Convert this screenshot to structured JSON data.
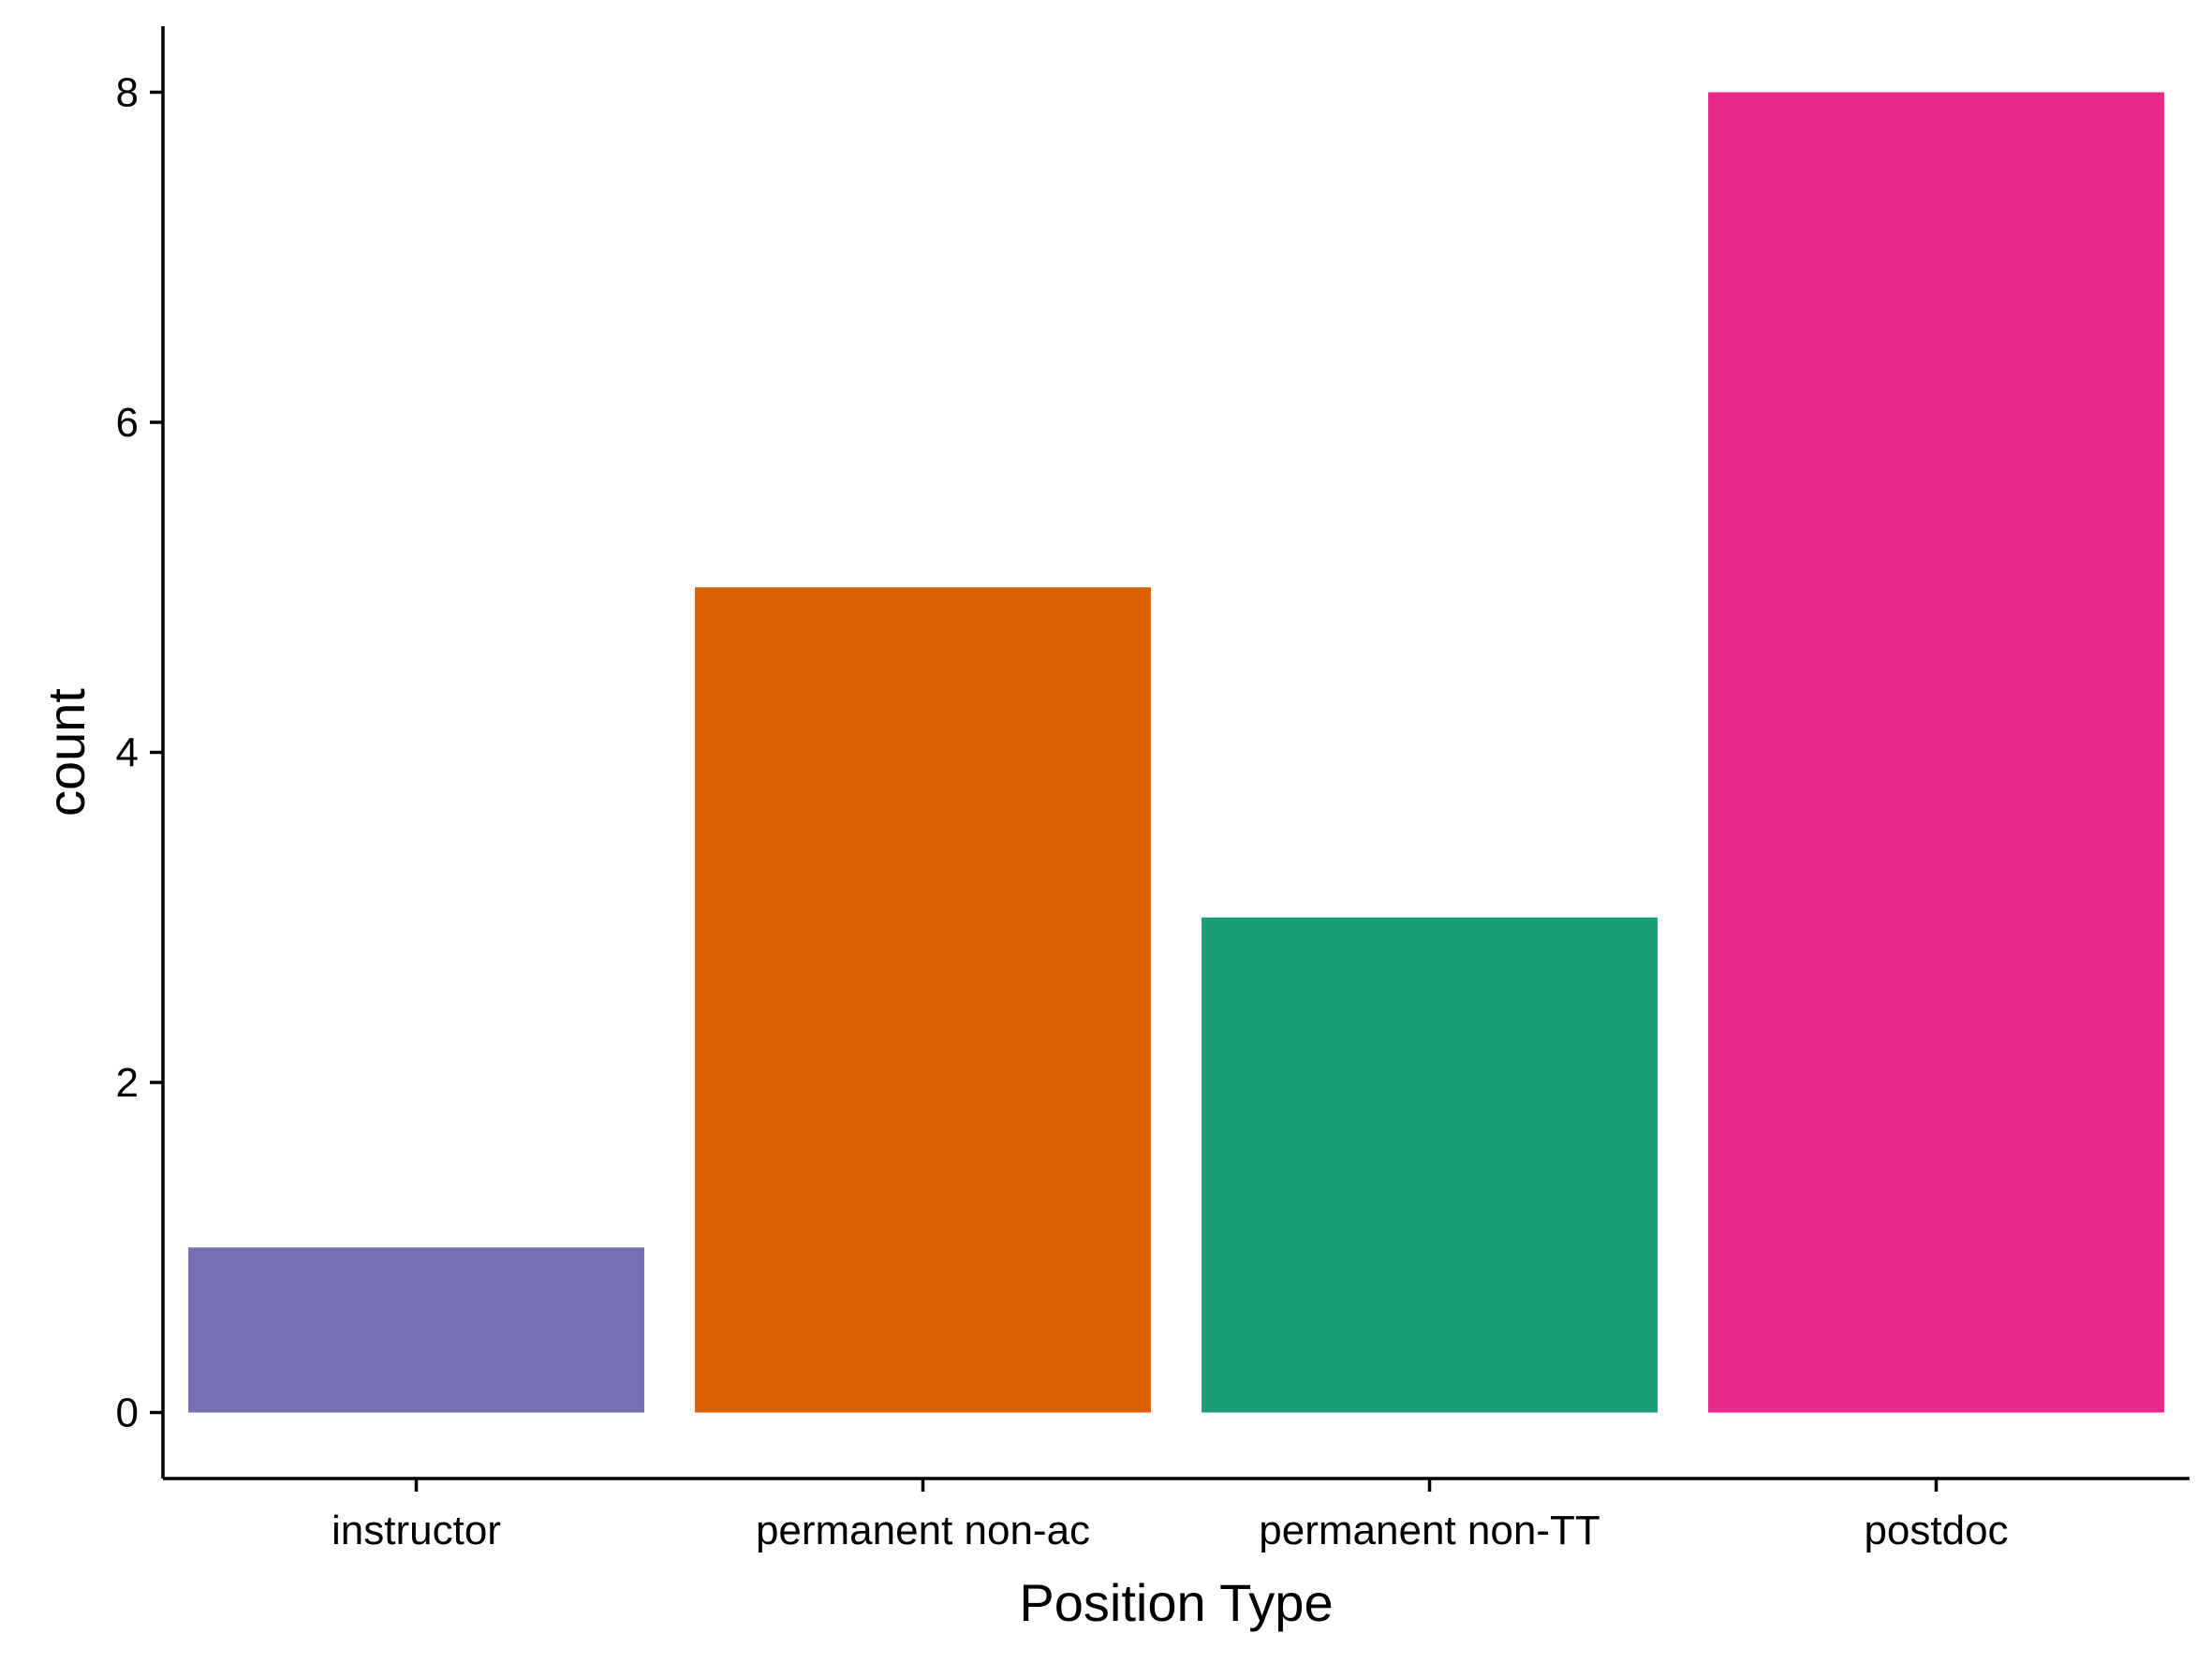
{
  "chart_data": {
    "type": "bar",
    "categories": [
      "instructor",
      "permanent non-ac",
      "permanent non-TT",
      "postdoc"
    ],
    "values": [
      1,
      5,
      3,
      8
    ],
    "colors": [
      "#7570B3",
      "#D95F02",
      "#1B9E77",
      "#E7298A"
    ],
    "xlabel": "Position Type",
    "ylabel": "count",
    "ylim": [
      -0.4,
      8.4
    ],
    "yticks": [
      0,
      2,
      4,
      6,
      8
    ],
    "yticklabels": [
      "0",
      "2",
      "4",
      "6",
      "8"
    ],
    "grid": false,
    "legend": "none"
  }
}
